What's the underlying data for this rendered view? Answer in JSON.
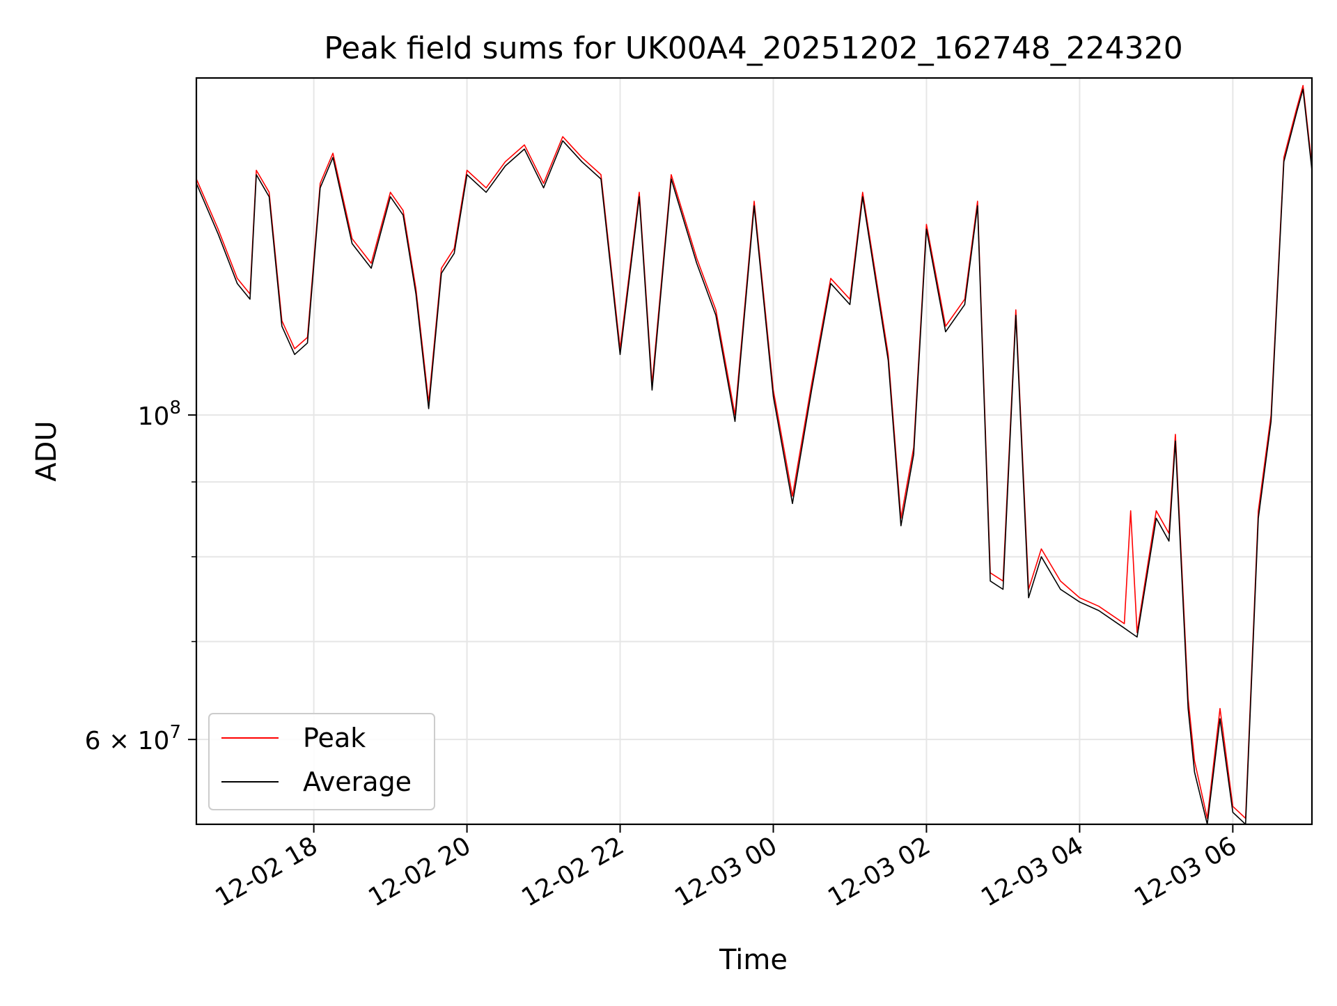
{
  "chart_data": {
    "type": "line",
    "title": "Peak field sums for UK00A4_20251202_162748_224320",
    "xlabel": "Time",
    "ylabel": "ADU",
    "yscale": "log",
    "ylim": [
      52500000,
      170000000
    ],
    "xlim": [
      "2025-12-02 16:28",
      "2025-12-03 07:02"
    ],
    "grid": true,
    "legend_position": "lower-left",
    "x_ticks": [
      {
        "t": "2025-12-02 18:00",
        "label": "12-02 18"
      },
      {
        "t": "2025-12-02 20:00",
        "label": "12-02 20"
      },
      {
        "t": "2025-12-02 22:00",
        "label": "12-02 22"
      },
      {
        "t": "2025-12-03 00:00",
        "label": "12-03 00"
      },
      {
        "t": "2025-12-03 02:00",
        "label": "12-03 02"
      },
      {
        "t": "2025-12-03 04:00",
        "label": "12-03 04"
      },
      {
        "t": "2025-12-03 06:00",
        "label": "12-03 06"
      }
    ],
    "y_major_ticks": [
      {
        "value": 100000000,
        "mantissa": "",
        "exp": "8"
      },
      {
        "value": 60000000,
        "mantissa": "6",
        "exp": "7"
      }
    ],
    "y_minor_ticks": [
      90000000,
      80000000,
      70000000,
      50000000
    ],
    "series": [
      {
        "name": "Peak",
        "color": "#ff0000",
        "points": [
          [
            "2025-12-02 16:28",
            145000000
          ],
          [
            "2025-12-02 16:45",
            134000000
          ],
          [
            "2025-12-02 17:00",
            124000000
          ],
          [
            "2025-12-02 17:10",
            121000000
          ],
          [
            "2025-12-02 17:15",
            147000000
          ],
          [
            "2025-12-02 17:25",
            142000000
          ],
          [
            "2025-12-02 17:35",
            116000000
          ],
          [
            "2025-12-02 17:45",
            111000000
          ],
          [
            "2025-12-02 17:55",
            113000000
          ],
          [
            "2025-12-02 18:05",
            144000000
          ],
          [
            "2025-12-02 18:15",
            151000000
          ],
          [
            "2025-12-02 18:30",
            132000000
          ],
          [
            "2025-12-02 18:45",
            127000000
          ],
          [
            "2025-12-02 19:00",
            142000000
          ],
          [
            "2025-12-02 19:10",
            138000000
          ],
          [
            "2025-12-02 19:20",
            122000000
          ],
          [
            "2025-12-02 19:30",
            102000000
          ],
          [
            "2025-12-02 19:40",
            126000000
          ],
          [
            "2025-12-02 19:50",
            130000000
          ],
          [
            "2025-12-02 20:00",
            147000000
          ],
          [
            "2025-12-02 20:15",
            143000000
          ],
          [
            "2025-12-02 20:30",
            149000000
          ],
          [
            "2025-12-02 20:45",
            153000000
          ],
          [
            "2025-12-02 21:00",
            144000000
          ],
          [
            "2025-12-02 21:15",
            155000000
          ],
          [
            "2025-12-02 21:30",
            150000000
          ],
          [
            "2025-12-02 21:45",
            146000000
          ],
          [
            "2025-12-02 22:00",
            111000000
          ],
          [
            "2025-12-02 22:15",
            142000000
          ],
          [
            "2025-12-02 22:25",
            105000000
          ],
          [
            "2025-12-02 22:40",
            146000000
          ],
          [
            "2025-12-02 23:00",
            128000000
          ],
          [
            "2025-12-02 23:15",
            118000000
          ],
          [
            "2025-12-02 23:30",
            100000000
          ],
          [
            "2025-12-02 23:45",
            140000000
          ],
          [
            "2025-12-03 00:00",
            104000000
          ],
          [
            "2025-12-03 00:15",
            88000000
          ],
          [
            "2025-12-03 00:30",
            105000000
          ],
          [
            "2025-12-03 00:45",
            124000000
          ],
          [
            "2025-12-03 01:00",
            120000000
          ],
          [
            "2025-12-03 01:10",
            142000000
          ],
          [
            "2025-12-03 01:30",
            110000000
          ],
          [
            "2025-12-03 01:40",
            85000000
          ],
          [
            "2025-12-03 01:50",
            95000000
          ],
          [
            "2025-12-03 02:00",
            135000000
          ],
          [
            "2025-12-03 02:15",
            115000000
          ],
          [
            "2025-12-03 02:30",
            120000000
          ],
          [
            "2025-12-03 02:40",
            140000000
          ],
          [
            "2025-12-03 02:50",
            78000000
          ],
          [
            "2025-12-03 03:00",
            77000000
          ],
          [
            "2025-12-03 03:10",
            118000000
          ],
          [
            "2025-12-03 03:20",
            76000000
          ],
          [
            "2025-12-03 03:30",
            81000000
          ],
          [
            "2025-12-03 03:45",
            77000000
          ],
          [
            "2025-12-03 04:00",
            75000000
          ],
          [
            "2025-12-03 04:15",
            74000000
          ],
          [
            "2025-12-03 04:35",
            72000000
          ],
          [
            "2025-12-03 04:40",
            86000000
          ],
          [
            "2025-12-03 04:45",
            71000000
          ],
          [
            "2025-12-03 05:00",
            86000000
          ],
          [
            "2025-12-03 05:10",
            83000000
          ],
          [
            "2025-12-03 05:15",
            97000000
          ],
          [
            "2025-12-03 05:25",
            64000000
          ],
          [
            "2025-12-03 05:30",
            58000000
          ],
          [
            "2025-12-03 05:40",
            53000000
          ],
          [
            "2025-12-03 05:50",
            63000000
          ],
          [
            "2025-12-03 06:00",
            54000000
          ],
          [
            "2025-12-03 06:10",
            53000000
          ],
          [
            "2025-12-03 06:20",
            86000000
          ],
          [
            "2025-12-03 06:30",
            100000000
          ],
          [
            "2025-12-03 06:40",
            150000000
          ],
          [
            "2025-12-03 06:50",
            162000000
          ],
          [
            "2025-12-03 06:55",
            168000000
          ],
          [
            "2025-12-03 07:02",
            148000000
          ]
        ]
      },
      {
        "name": "Average",
        "color": "#000000",
        "points": [
          [
            "2025-12-02 16:28",
            144000000
          ],
          [
            "2025-12-02 16:45",
            133000000
          ],
          [
            "2025-12-02 17:00",
            123000000
          ],
          [
            "2025-12-02 17:10",
            120000000
          ],
          [
            "2025-12-02 17:15",
            146000000
          ],
          [
            "2025-12-02 17:25",
            141000000
          ],
          [
            "2025-12-02 17:35",
            115000000
          ],
          [
            "2025-12-02 17:45",
            110000000
          ],
          [
            "2025-12-02 17:55",
            112000000
          ],
          [
            "2025-12-02 18:05",
            143000000
          ],
          [
            "2025-12-02 18:15",
            150000000
          ],
          [
            "2025-12-02 18:30",
            131000000
          ],
          [
            "2025-12-02 18:45",
            126000000
          ],
          [
            "2025-12-02 19:00",
            141000000
          ],
          [
            "2025-12-02 19:10",
            137000000
          ],
          [
            "2025-12-02 19:20",
            121000000
          ],
          [
            "2025-12-02 19:30",
            101000000
          ],
          [
            "2025-12-02 19:40",
            125000000
          ],
          [
            "2025-12-02 19:50",
            129000000
          ],
          [
            "2025-12-02 20:00",
            146000000
          ],
          [
            "2025-12-02 20:15",
            142000000
          ],
          [
            "2025-12-02 20:30",
            148000000
          ],
          [
            "2025-12-02 20:45",
            152000000
          ],
          [
            "2025-12-02 21:00",
            143000000
          ],
          [
            "2025-12-02 21:15",
            154000000
          ],
          [
            "2025-12-02 21:30",
            149000000
          ],
          [
            "2025-12-02 21:45",
            145000000
          ],
          [
            "2025-12-02 22:00",
            110000000
          ],
          [
            "2025-12-02 22:15",
            141000000
          ],
          [
            "2025-12-02 22:25",
            104000000
          ],
          [
            "2025-12-02 22:40",
            145000000
          ],
          [
            "2025-12-02 23:00",
            127000000
          ],
          [
            "2025-12-02 23:15",
            117000000
          ],
          [
            "2025-12-02 23:30",
            99000000
          ],
          [
            "2025-12-02 23:45",
            139000000
          ],
          [
            "2025-12-03 00:00",
            103000000
          ],
          [
            "2025-12-03 00:15",
            87000000
          ],
          [
            "2025-12-03 00:30",
            104000000
          ],
          [
            "2025-12-03 00:45",
            123000000
          ],
          [
            "2025-12-03 01:00",
            119000000
          ],
          [
            "2025-12-03 01:10",
            141000000
          ],
          [
            "2025-12-03 01:30",
            109000000
          ],
          [
            "2025-12-03 01:40",
            84000000
          ],
          [
            "2025-12-03 01:50",
            94000000
          ],
          [
            "2025-12-03 02:00",
            134000000
          ],
          [
            "2025-12-03 02:15",
            114000000
          ],
          [
            "2025-12-03 02:30",
            119000000
          ],
          [
            "2025-12-03 02:40",
            139000000
          ],
          [
            "2025-12-03 02:50",
            77000000
          ],
          [
            "2025-12-03 03:00",
            76000000
          ],
          [
            "2025-12-03 03:10",
            117000000
          ],
          [
            "2025-12-03 03:20",
            75000000
          ],
          [
            "2025-12-03 03:30",
            80000000
          ],
          [
            "2025-12-03 03:45",
            76000000
          ],
          [
            "2025-12-03 04:00",
            74500000
          ],
          [
            "2025-12-03 04:15",
            73500000
          ],
          [
            "2025-12-03 04:35",
            71500000
          ],
          [
            "2025-12-03 04:40",
            71000000
          ],
          [
            "2025-12-03 04:45",
            70500000
          ],
          [
            "2025-12-03 05:00",
            85000000
          ],
          [
            "2025-12-03 05:10",
            82000000
          ],
          [
            "2025-12-03 05:15",
            96000000
          ],
          [
            "2025-12-03 05:25",
            63000000
          ],
          [
            "2025-12-03 05:30",
            57000000
          ],
          [
            "2025-12-03 05:40",
            52500000
          ],
          [
            "2025-12-03 05:50",
            62000000
          ],
          [
            "2025-12-03 06:00",
            53500000
          ],
          [
            "2025-12-03 06:10",
            52500000
          ],
          [
            "2025-12-03 06:20",
            85000000
          ],
          [
            "2025-12-03 06:30",
            99000000
          ],
          [
            "2025-12-03 06:40",
            149000000
          ],
          [
            "2025-12-03 06:50",
            161000000
          ],
          [
            "2025-12-03 06:55",
            167000000
          ],
          [
            "2025-12-03 07:02",
            147000000
          ]
        ]
      }
    ]
  }
}
